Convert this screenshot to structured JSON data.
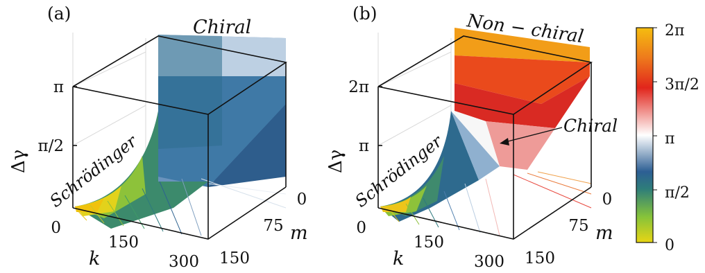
{
  "chart_data": [
    {
      "panel_label": "(a)",
      "type": "surface",
      "axes": {
        "x": {
          "label": "k",
          "ticks": [
            "0",
            "150",
            "300"
          ]
        },
        "y": {
          "label": "m",
          "ticks": [
            "0",
            "75",
            "150"
          ]
        },
        "z": {
          "label": "Δγ",
          "ticks": [
            "π/2",
            "π"
          ]
        }
      },
      "annotations": [
        "Chiral",
        "Schrödinger"
      ],
      "colormap_max": "π"
    },
    {
      "panel_label": "(b)",
      "type": "surface",
      "axes": {
        "x": {
          "label": "k",
          "ticks": [
            "0",
            "150",
            "300"
          ]
        },
        "y": {
          "label": "m",
          "ticks": [
            "0",
            "75",
            "150"
          ]
        },
        "z": {
          "label": "Δγ",
          "ticks": [
            "π",
            "2π"
          ]
        }
      },
      "annotations": [
        "Non − chiral",
        "Chiral",
        "Schrödinger"
      ],
      "colormap_max": "2π"
    }
  ],
  "colorbar": {
    "ticks": [
      "2π",
      "3π/2",
      "π",
      "π/2",
      "0"
    ],
    "colors": [
      "#f2b70a",
      "#f07d1a",
      "#e1261c",
      "#ffffff",
      "#2d6fa3",
      "#2e7d7a",
      "#86c33a",
      "#e9d91a"
    ]
  }
}
